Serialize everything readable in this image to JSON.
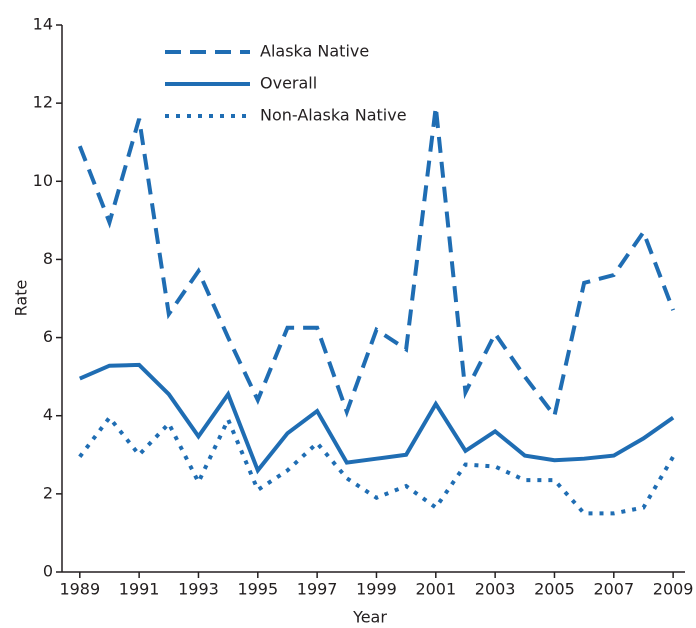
{
  "chart_data": {
    "type": "line",
    "x_label": "Year",
    "y_label": "Rate",
    "x": [
      1989,
      1990,
      1991,
      1992,
      1993,
      1994,
      1995,
      1996,
      1997,
      1998,
      1999,
      2000,
      2001,
      2002,
      2003,
      2004,
      2005,
      2006,
      2007,
      2008,
      2009
    ],
    "series": [
      {
        "name": "Alaska Native",
        "color": "#1f6db3",
        "dash": "dashed",
        "values": [
          10.9,
          8.95,
          11.6,
          6.6,
          7.7,
          6.0,
          4.4,
          6.25,
          6.25,
          4.1,
          6.2,
          5.7,
          11.9,
          4.6,
          6.1,
          5.0,
          4.0,
          7.4,
          7.6,
          8.7,
          6.7
        ]
      },
      {
        "name": "Overall",
        "color": "#1f6db3",
        "dash": "solid",
        "values": [
          4.95,
          5.28,
          5.3,
          4.55,
          3.47,
          4.55,
          2.6,
          3.55,
          4.12,
          2.8,
          2.9,
          3.0,
          4.3,
          3.1,
          3.6,
          2.98,
          2.86,
          2.9,
          2.98,
          3.42,
          3.95
        ]
      },
      {
        "name": "Non-Alaska Native",
        "color": "#1f6db3",
        "dash": "dotted",
        "values": [
          2.95,
          3.95,
          3.0,
          3.8,
          2.3,
          3.9,
          2.1,
          2.6,
          3.3,
          2.4,
          1.9,
          2.2,
          1.65,
          2.75,
          2.7,
          2.35,
          2.35,
          1.5,
          1.5,
          1.65,
          2.95
        ]
      }
    ],
    "xlim": [
      1988.4,
      2009.4
    ],
    "xticks": [
      1989,
      1991,
      1993,
      1995,
      1997,
      1999,
      2001,
      2003,
      2005,
      2007,
      2009
    ],
    "ylim": [
      0,
      14
    ],
    "yticks": [
      0,
      2,
      4,
      6,
      8,
      10,
      12,
      14
    ],
    "legend": "upper-left",
    "grid": false
  }
}
